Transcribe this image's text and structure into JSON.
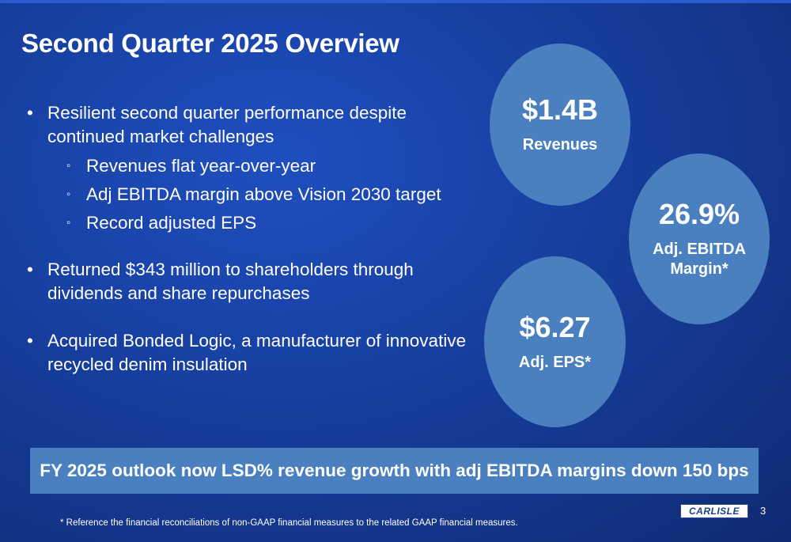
{
  "slide": {
    "title": "Second Quarter 2025 Overview",
    "bullet_glyph": "•",
    "sub_glyph": "◦",
    "bullets": [
      {
        "text": "Resilient second quarter performance despite continued market challenges",
        "subs": [
          "Revenues flat year-over-year",
          "Adj EBITDA margin above Vision 2030 target",
          "Record adjusted EPS"
        ]
      },
      {
        "text": "Returned $343 million to shareholders through dividends and share repurchases"
      },
      {
        "text": "Acquired Bonded Logic, a manufacturer of innovative recycled denim insulation"
      }
    ],
    "metrics": [
      {
        "value": "$1.4B",
        "label": "Revenues"
      },
      {
        "value": "26.9%",
        "label": "Adj. EBITDA Margin*"
      },
      {
        "value": "$6.27",
        "label": "Adj. EPS*"
      }
    ],
    "outlook": "FY 2025 outlook now LSD% revenue growth with adj EBITDA margins down 150 bps",
    "footnote": "* Reference the financial reconciliations of non-GAAP financial measures to the related GAAP financial measures.",
    "logo_text": "CARLISLE",
    "page_number": "3",
    "colors": {
      "background": "#173e9e",
      "circle": "#4a7fc0",
      "text": "#ffffff"
    }
  }
}
